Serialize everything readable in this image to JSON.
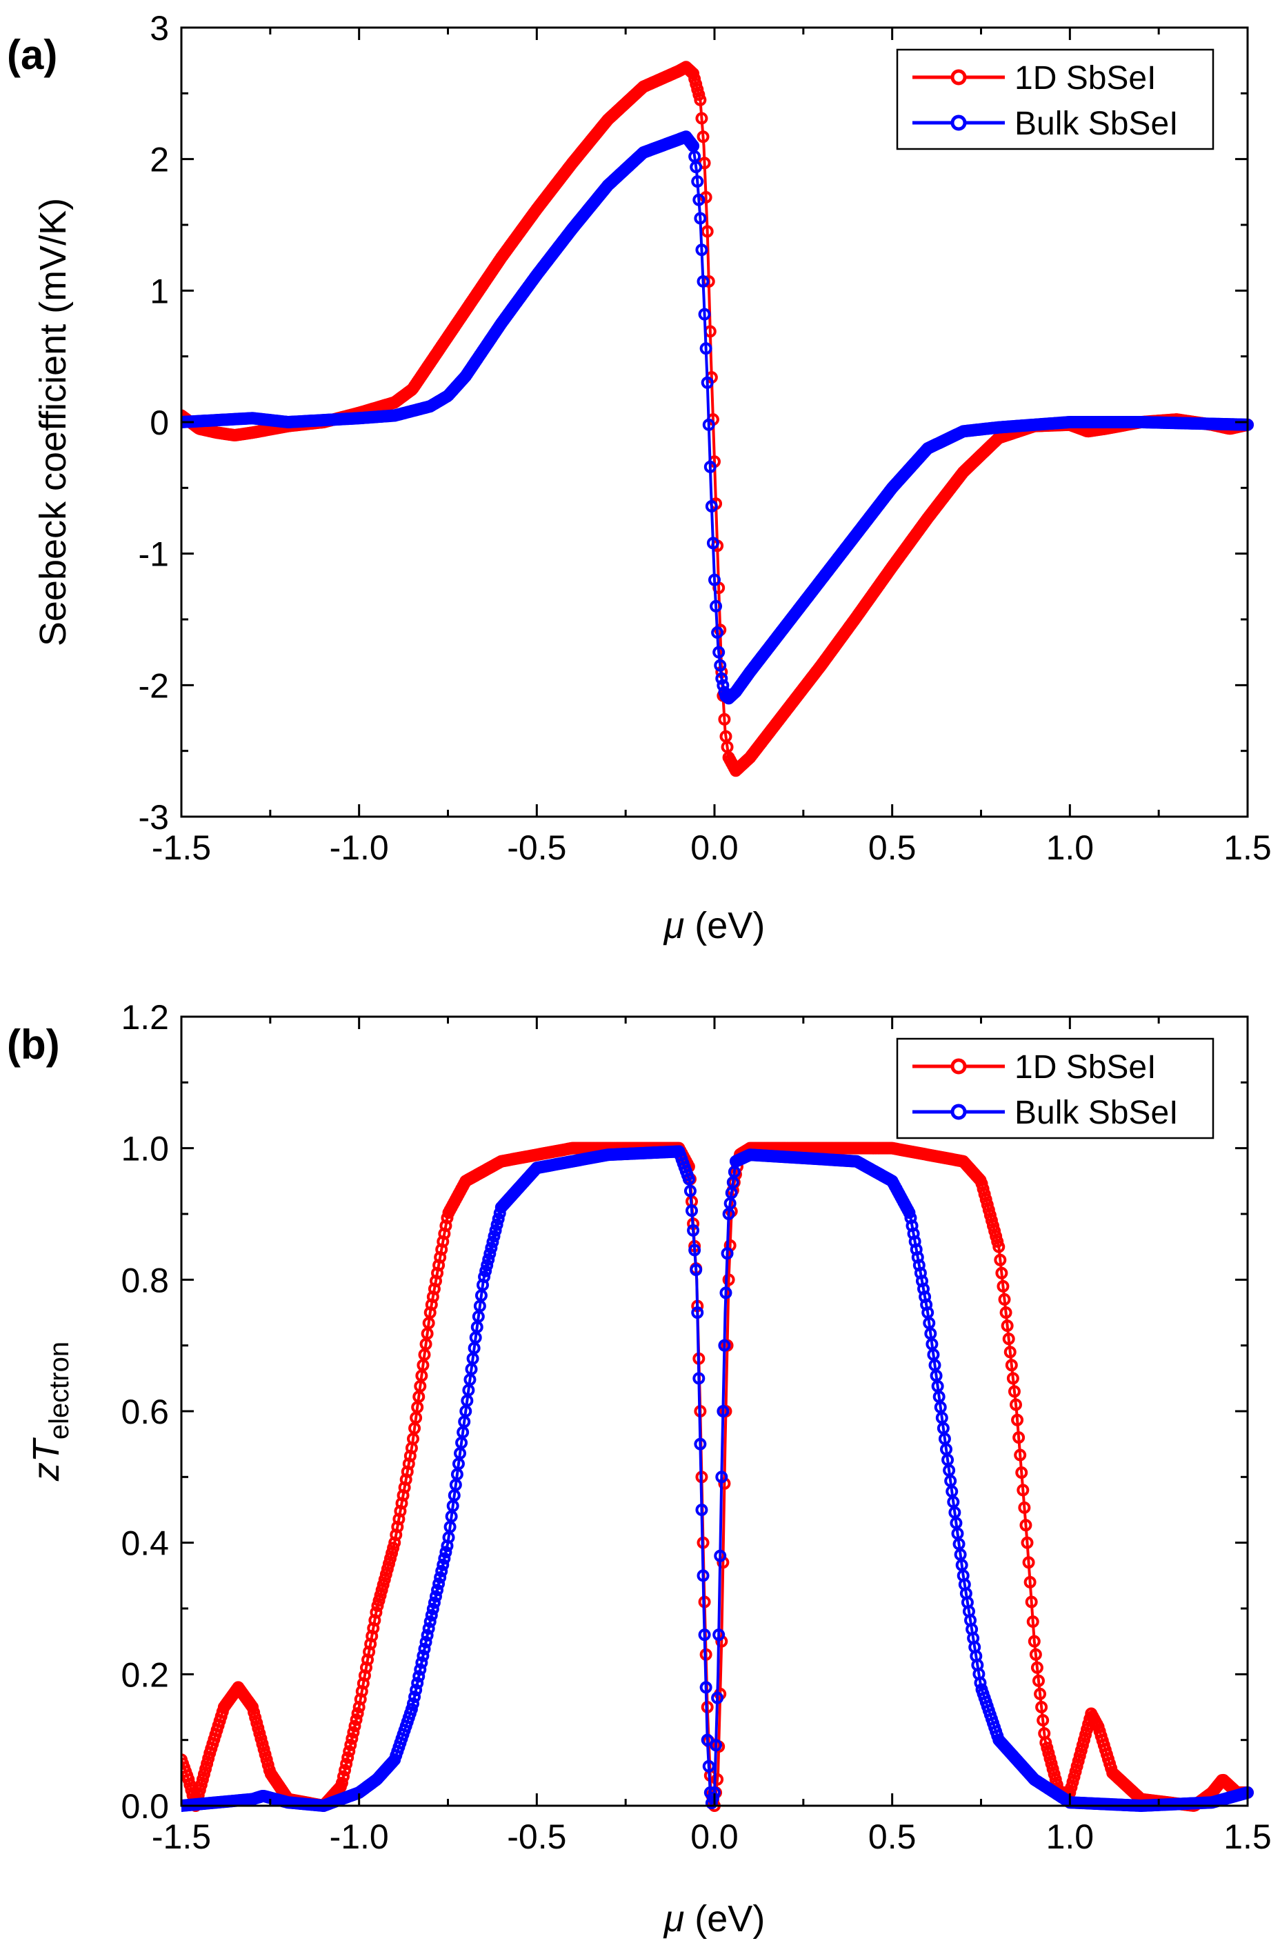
{
  "chart_data": [
    {
      "type": "line",
      "panel_label": "(a)",
      "xlabel_symbol": "μ",
      "xlabel_unit": " (eV)",
      "ylabel": "Seebeck coefficient (mV/K)",
      "xlim": [
        -1.5,
        1.5
      ],
      "ylim": [
        -3,
        3
      ],
      "xticks": [
        "-1.5",
        "-1.0",
        "-0.5",
        "0.0",
        "0.5",
        "1.0",
        "1.5"
      ],
      "yticks": [
        "-3",
        "-2",
        "-1",
        "0",
        "1",
        "2",
        "3"
      ],
      "grid": false,
      "legend_position": "top-right",
      "series": [
        {
          "name": "1D SbSeI",
          "color": "#ff0000",
          "marker": "open-circle",
          "x": [
            -1.5,
            -1.45,
            -1.4,
            -1.35,
            -1.3,
            -1.2,
            -1.1,
            -1.0,
            -0.9,
            -0.85,
            -0.8,
            -0.7,
            -0.6,
            -0.5,
            -0.4,
            -0.3,
            -0.2,
            -0.1,
            -0.08,
            -0.06,
            -0.04,
            -0.03,
            -0.02,
            -0.01,
            0,
            0.01,
            0.02,
            0.03,
            0.04,
            0.06,
            0.1,
            0.2,
            0.3,
            0.4,
            0.5,
            0.6,
            0.7,
            0.8,
            0.9,
            1.0,
            1.05,
            1.1,
            1.2,
            1.3,
            1.4,
            1.45,
            1.5
          ],
          "y": [
            0.05,
            -0.05,
            -0.08,
            -0.1,
            -0.08,
            -0.03,
            0.0,
            0.07,
            0.15,
            0.25,
            0.45,
            0.85,
            1.25,
            1.62,
            1.97,
            2.3,
            2.55,
            2.67,
            2.7,
            2.65,
            2.45,
            2.1,
            1.45,
            0.5,
            -0.3,
            -1.1,
            -1.9,
            -2.35,
            -2.55,
            -2.65,
            -2.55,
            -2.2,
            -1.85,
            -1.48,
            -1.1,
            -0.73,
            -0.38,
            -0.12,
            -0.03,
            -0.02,
            -0.07,
            -0.05,
            0.0,
            0.02,
            -0.02,
            -0.05,
            -0.02
          ]
        },
        {
          "name": "Bulk SbSeI",
          "color": "#0000ff",
          "marker": "open-circle",
          "x": [
            -1.5,
            -1.3,
            -1.2,
            -1.0,
            -0.9,
            -0.8,
            -0.75,
            -0.7,
            -0.6,
            -0.5,
            -0.4,
            -0.3,
            -0.2,
            -0.1,
            -0.08,
            -0.06,
            -0.05,
            -0.04,
            -0.03,
            -0.02,
            -0.01,
            0,
            0.01,
            0.02,
            0.03,
            0.04,
            0.06,
            0.1,
            0.2,
            0.3,
            0.4,
            0.5,
            0.6,
            0.7,
            0.8,
            1.0,
            1.2,
            1.5
          ],
          "y": [
            0.0,
            0.03,
            0.0,
            0.03,
            0.05,
            0.12,
            0.2,
            0.35,
            0.75,
            1.12,
            1.47,
            1.8,
            2.05,
            2.15,
            2.17,
            2.1,
            1.9,
            1.55,
            0.95,
            0.3,
            -0.5,
            -1.2,
            -1.7,
            -1.95,
            -2.08,
            -2.1,
            -2.05,
            -1.9,
            -1.55,
            -1.2,
            -0.85,
            -0.5,
            -0.2,
            -0.07,
            -0.04,
            0.0,
            0.0,
            -0.02
          ]
        }
      ]
    },
    {
      "type": "line",
      "panel_label": "(b)",
      "xlabel_symbol": "μ",
      "xlabel_unit": " (eV)",
      "ylabel_main": "zT",
      "ylabel_sub": "electron",
      "xlim": [
        -1.5,
        1.5
      ],
      "ylim": [
        0,
        1.2
      ],
      "xticks": [
        "-1.5",
        "-1.0",
        "-0.5",
        "0.0",
        "0.5",
        "1.0",
        "1.5"
      ],
      "yticks": [
        "0.0",
        "0.2",
        "0.4",
        "0.6",
        "0.8",
        "1.0",
        "1.2"
      ],
      "grid": false,
      "legend_position": "top-right",
      "series": [
        {
          "name": "1D SbSeI",
          "color": "#ff0000",
          "marker": "open-circle",
          "x": [
            -1.5,
            -1.48,
            -1.46,
            -1.42,
            -1.38,
            -1.34,
            -1.3,
            -1.25,
            -1.2,
            -1.1,
            -1.05,
            -1.0,
            -0.95,
            -0.9,
            -0.85,
            -0.8,
            -0.75,
            -0.7,
            -0.6,
            -0.4,
            -0.1,
            -0.07,
            -0.05,
            -0.04,
            -0.03,
            -0.02,
            -0.01,
            0,
            0.01,
            0.02,
            0.03,
            0.04,
            0.05,
            0.07,
            0.1,
            0.5,
            0.7,
            0.75,
            0.8,
            0.85,
            0.88,
            0.9,
            0.93,
            0.97,
            1.0,
            1.04,
            1.06,
            1.08,
            1.12,
            1.2,
            1.35,
            1.4,
            1.43,
            1.47,
            1.5
          ],
          "y": [
            0.07,
            0.04,
            0.0,
            0.08,
            0.15,
            0.18,
            0.15,
            0.05,
            0.01,
            0.0,
            0.03,
            0.15,
            0.3,
            0.4,
            0.55,
            0.75,
            0.9,
            0.95,
            0.98,
            1.0,
            1.0,
            0.97,
            0.8,
            0.6,
            0.35,
            0.15,
            0.02,
            0.0,
            0.05,
            0.25,
            0.55,
            0.8,
            0.93,
            0.99,
            1.0,
            1.0,
            0.98,
            0.95,
            0.85,
            0.6,
            0.4,
            0.25,
            0.1,
            0.02,
            0.02,
            0.1,
            0.14,
            0.12,
            0.05,
            0.01,
            0.0,
            0.02,
            0.04,
            0.02,
            0.02
          ]
        },
        {
          "name": "Bulk SbSeI",
          "color": "#0000ff",
          "marker": "open-circle",
          "x": [
            -1.5,
            -1.3,
            -1.27,
            -1.2,
            -1.1,
            -1.0,
            -0.95,
            -0.9,
            -0.85,
            -0.8,
            -0.75,
            -0.7,
            -0.65,
            -0.6,
            -0.5,
            -0.3,
            -0.1,
            -0.07,
            -0.05,
            -0.04,
            -0.03,
            -0.02,
            -0.01,
            0.0,
            0.01,
            0.02,
            0.03,
            0.04,
            0.06,
            0.1,
            0.4,
            0.5,
            0.55,
            0.6,
            0.65,
            0.7,
            0.75,
            0.8,
            0.9,
            1.0,
            1.2,
            1.4,
            1.5
          ],
          "y": [
            0.0,
            0.01,
            0.015,
            0.005,
            0.0,
            0.02,
            0.04,
            0.07,
            0.15,
            0.28,
            0.4,
            0.6,
            0.8,
            0.91,
            0.97,
            0.99,
            0.995,
            0.95,
            0.8,
            0.55,
            0.3,
            0.1,
            0.0,
            0.02,
            0.2,
            0.5,
            0.75,
            0.9,
            0.98,
            0.99,
            0.98,
            0.95,
            0.9,
            0.75,
            0.55,
            0.35,
            0.18,
            0.1,
            0.04,
            0.005,
            0.0,
            0.005,
            0.02
          ]
        }
      ]
    }
  ]
}
